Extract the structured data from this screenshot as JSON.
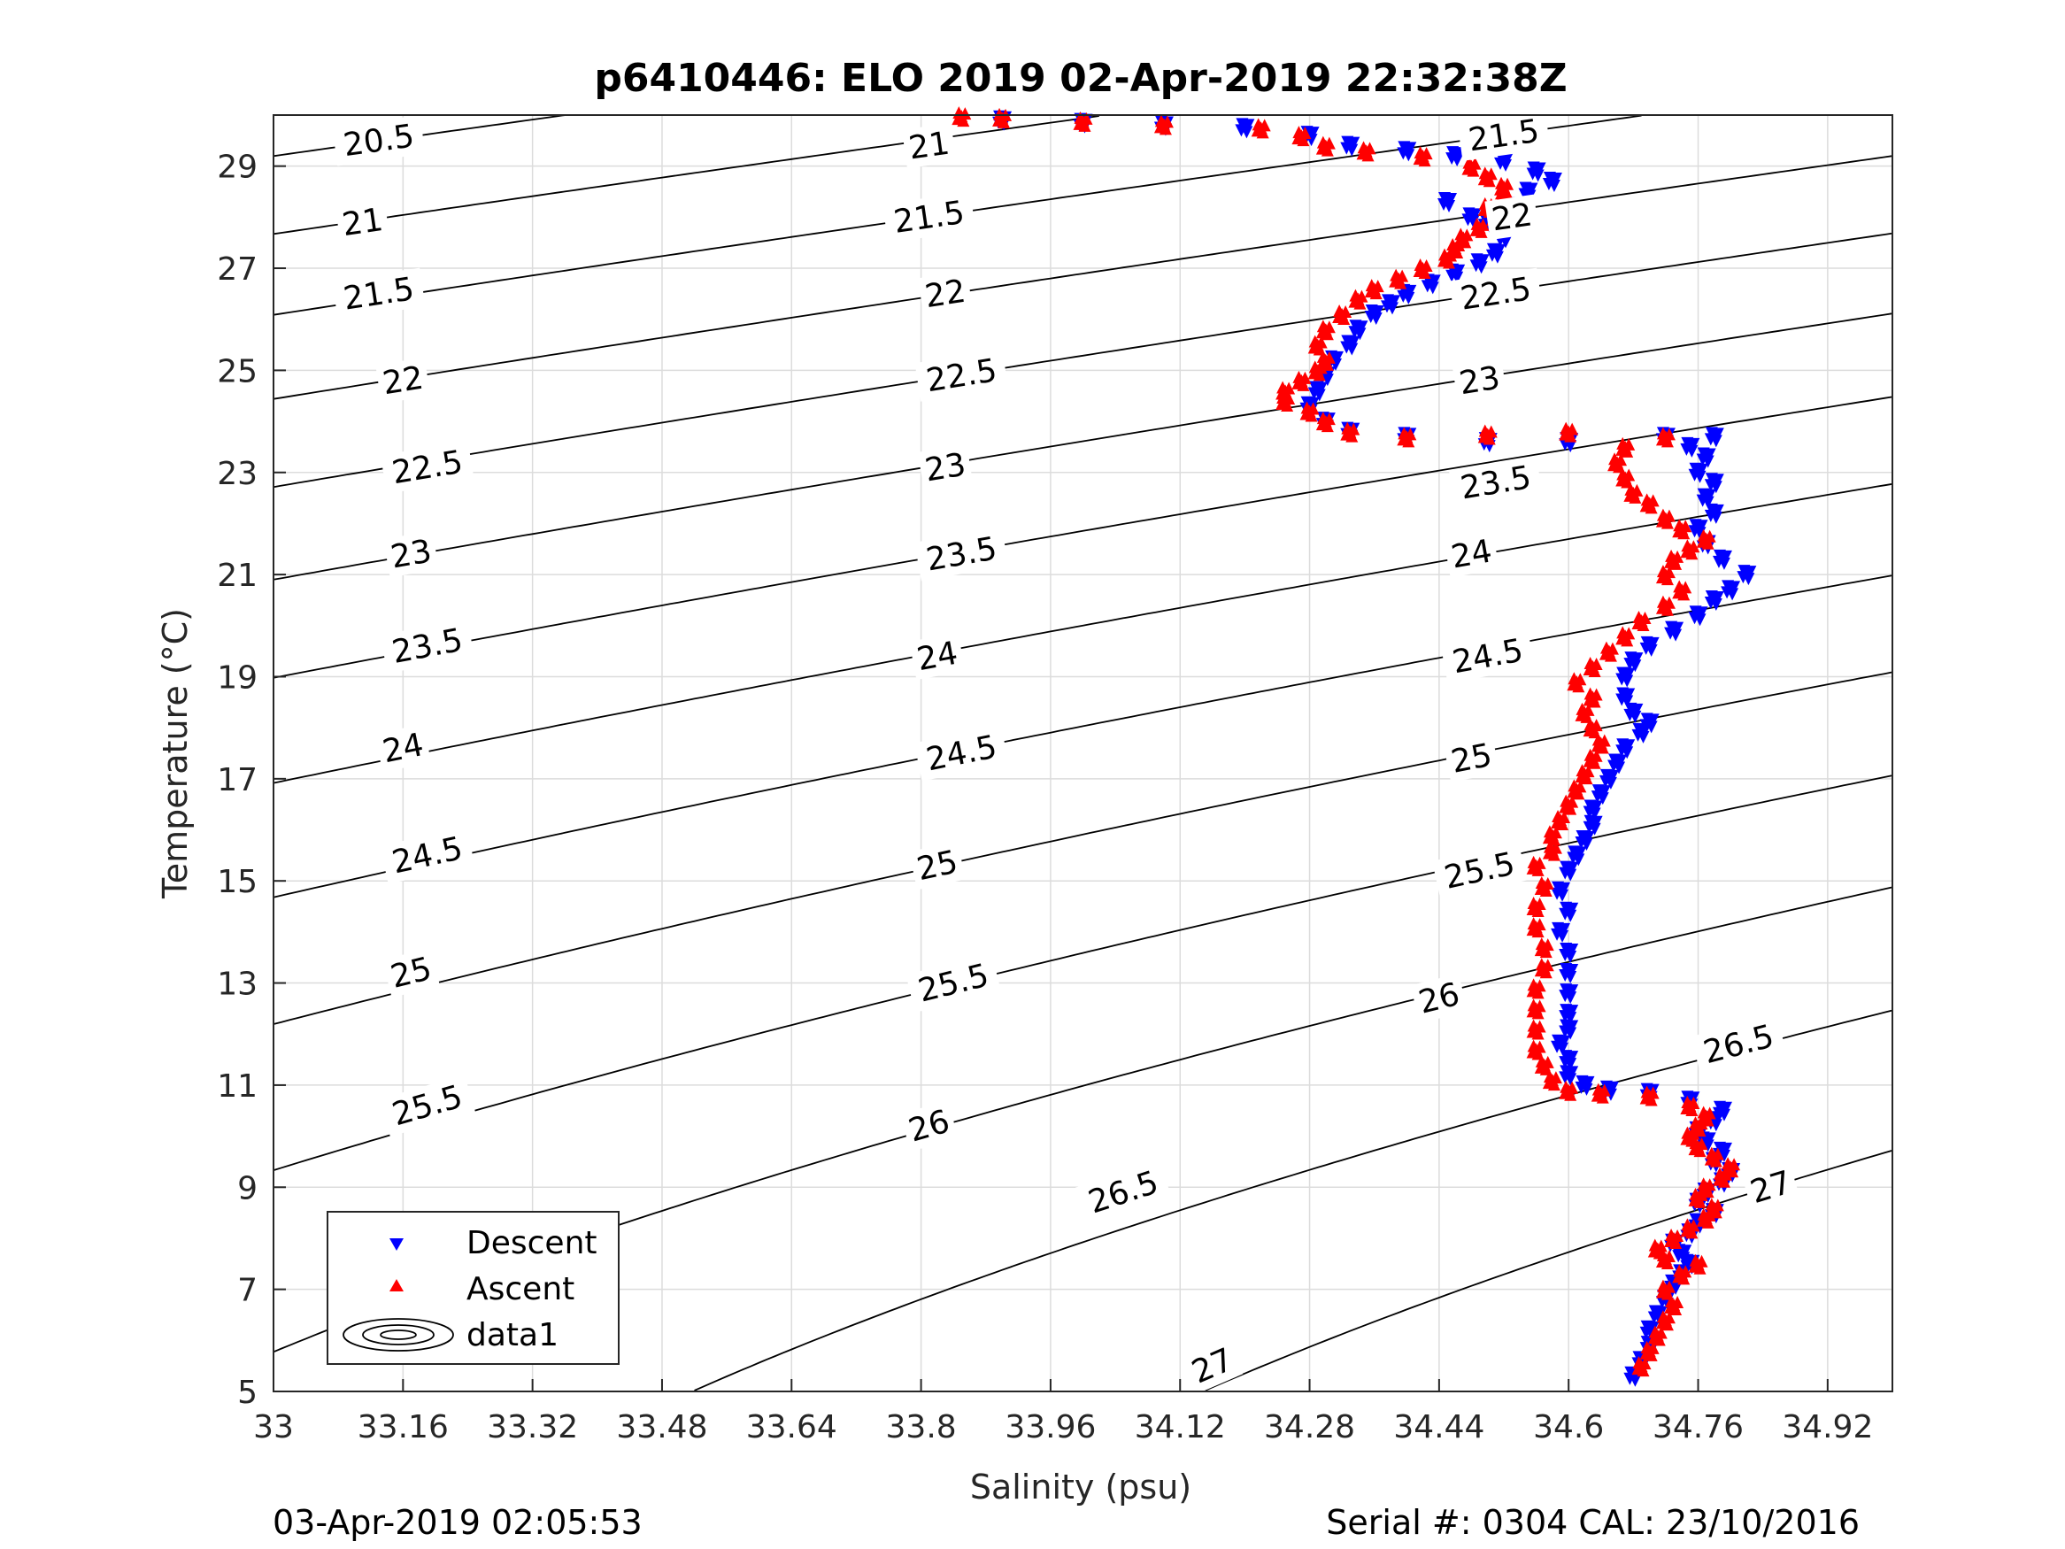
{
  "chart_data": {
    "type": "scatter",
    "title": "p6410446: ELO 2019 02-Apr-2019 22:32:38Z",
    "xlabel": "Salinity (psu)",
    "ylabel": "Temperature (°C)",
    "xlim": [
      33.0,
      35.0
    ],
    "ylim": [
      5,
      30
    ],
    "grid": true,
    "xticks": [
      "33",
      "33.16",
      "33.32",
      "33.48",
      "33.64",
      "33.8",
      "33.96",
      "34.12",
      "34.28",
      "34.44",
      "34.6",
      "34.76",
      "34.92"
    ],
    "yticks": [
      "5",
      "7",
      "9",
      "11",
      "13",
      "15",
      "17",
      "19",
      "21",
      "23",
      "25",
      "27",
      "29"
    ],
    "legend": {
      "placement": "bottom-left",
      "entries": [
        "Descent",
        "Ascent",
        "data1"
      ]
    },
    "contours": {
      "levels": [
        20.5,
        21,
        21.5,
        22,
        22.5,
        23,
        23.5,
        24,
        24.5,
        25,
        25.5,
        26,
        26.5,
        27
      ],
      "color": "#000000"
    },
    "contour_labels": [
      {
        "text": "20.5",
        "s": 33.13,
        "t": 29.5
      },
      {
        "text": "21",
        "s": 33.11,
        "t": 27.9
      },
      {
        "text": "21.5",
        "s": 33.13,
        "t": 26.5
      },
      {
        "text": "22",
        "s": 33.16,
        "t": 24.8
      },
      {
        "text": "22.5",
        "s": 33.19,
        "t": 23.1
      },
      {
        "text": "23",
        "s": 33.17,
        "t": 21.4
      },
      {
        "text": "23.5",
        "s": 33.19,
        "t": 19.6
      },
      {
        "text": "24",
        "s": 33.16,
        "t": 17.6
      },
      {
        "text": "24.5",
        "s": 33.19,
        "t": 15.5
      },
      {
        "text": "25",
        "s": 33.17,
        "t": 13.2
      },
      {
        "text": "25.5",
        "s": 33.19,
        "t": 10.6
      },
      {
        "text": "26",
        "s": 33.16,
        "t": 7.0
      },
      {
        "text": "21",
        "s": 33.81,
        "t": 29.4
      },
      {
        "text": "21.5",
        "s": 33.81,
        "t": 28.0
      },
      {
        "text": "22",
        "s": 33.83,
        "t": 26.5
      },
      {
        "text": "22.5",
        "s": 33.85,
        "t": 24.9
      },
      {
        "text": "23",
        "s": 33.83,
        "t": 23.1
      },
      {
        "text": "23.5",
        "s": 33.85,
        "t": 21.4
      },
      {
        "text": "24",
        "s": 33.82,
        "t": 19.4
      },
      {
        "text": "24.5",
        "s": 33.85,
        "t": 17.5
      },
      {
        "text": "25",
        "s": 33.82,
        "t": 15.3
      },
      {
        "text": "25.5",
        "s": 33.84,
        "t": 13.0
      },
      {
        "text": "26",
        "s": 33.81,
        "t": 10.2
      },
      {
        "text": "26.5",
        "s": 34.05,
        "t": 8.9
      },
      {
        "text": "27",
        "s": 34.16,
        "t": 5.5
      },
      {
        "text": "21.5",
        "s": 34.52,
        "t": 29.6
      },
      {
        "text": "22",
        "s": 34.53,
        "t": 28.0
      },
      {
        "text": "22.5",
        "s": 34.51,
        "t": 26.5
      },
      {
        "text": "23",
        "s": 34.49,
        "t": 24.8
      },
      {
        "text": "23.5",
        "s": 34.51,
        "t": 22.8
      },
      {
        "text": "24",
        "s": 34.48,
        "t": 21.4
      },
      {
        "text": "24.5",
        "s": 34.5,
        "t": 19.4
      },
      {
        "text": "25",
        "s": 34.48,
        "t": 17.4
      },
      {
        "text": "25.5",
        "s": 34.49,
        "t": 15.2
      },
      {
        "text": "26",
        "s": 34.44,
        "t": 12.7
      },
      {
        "text": "26.5",
        "s": 34.81,
        "t": 11.8
      },
      {
        "text": "27",
        "s": 34.85,
        "t": 9.0
      }
    ],
    "series": [
      {
        "name": "Descent",
        "marker": "triangle-down",
        "color": "#0000ff",
        "points": [
          [
            34.68,
            5.3
          ],
          [
            34.69,
            5.6
          ],
          [
            34.7,
            5.9
          ],
          [
            34.7,
            6.2
          ],
          [
            34.71,
            6.5
          ],
          [
            34.72,
            6.8
          ],
          [
            34.73,
            7.1
          ],
          [
            34.74,
            7.3
          ],
          [
            34.75,
            7.5
          ],
          [
            34.74,
            7.7
          ],
          [
            34.73,
            7.9
          ],
          [
            34.75,
            8.1
          ],
          [
            34.76,
            8.3
          ],
          [
            34.78,
            8.5
          ],
          [
            34.76,
            8.7
          ],
          [
            34.77,
            8.9
          ],
          [
            34.79,
            9.1
          ],
          [
            34.8,
            9.3
          ],
          [
            34.78,
            9.5
          ],
          [
            34.79,
            9.7
          ],
          [
            34.77,
            9.9
          ],
          [
            34.76,
            10.1
          ],
          [
            34.78,
            10.3
          ],
          [
            34.79,
            10.5
          ],
          [
            34.75,
            10.7
          ],
          [
            34.7,
            10.85
          ],
          [
            34.65,
            10.9
          ],
          [
            34.62,
            11.0
          ],
          [
            34.6,
            11.2
          ],
          [
            34.6,
            11.5
          ],
          [
            34.59,
            11.8
          ],
          [
            34.6,
            12.1
          ],
          [
            34.6,
            12.4
          ],
          [
            34.6,
            12.8
          ],
          [
            34.6,
            13.2
          ],
          [
            34.6,
            13.6
          ],
          [
            34.59,
            14.0
          ],
          [
            34.6,
            14.4
          ],
          [
            34.59,
            14.8
          ],
          [
            34.6,
            15.2
          ],
          [
            34.61,
            15.5
          ],
          [
            34.62,
            15.8
          ],
          [
            34.63,
            16.1
          ],
          [
            34.63,
            16.4
          ],
          [
            34.64,
            16.7
          ],
          [
            34.65,
            17.0
          ],
          [
            34.66,
            17.3
          ],
          [
            34.67,
            17.6
          ],
          [
            34.69,
            17.9
          ],
          [
            34.7,
            18.1
          ],
          [
            34.68,
            18.3
          ],
          [
            34.67,
            18.6
          ],
          [
            34.67,
            19.0
          ],
          [
            34.68,
            19.3
          ],
          [
            34.7,
            19.6
          ],
          [
            34.73,
            19.9
          ],
          [
            34.76,
            20.2
          ],
          [
            34.78,
            20.5
          ],
          [
            34.8,
            20.7
          ],
          [
            34.82,
            21.0
          ],
          [
            34.79,
            21.3
          ],
          [
            34.77,
            21.6
          ],
          [
            34.76,
            21.9
          ],
          [
            34.78,
            22.2
          ],
          [
            34.77,
            22.5
          ],
          [
            34.78,
            22.8
          ],
          [
            34.76,
            23.0
          ],
          [
            34.77,
            23.3
          ],
          [
            34.75,
            23.5
          ],
          [
            34.72,
            23.7
          ],
          [
            34.78,
            23.7
          ],
          [
            34.6,
            23.6
          ],
          [
            34.5,
            23.6
          ],
          [
            34.4,
            23.7
          ],
          [
            34.33,
            23.8
          ],
          [
            34.3,
            24.0
          ],
          [
            34.28,
            24.3
          ],
          [
            34.29,
            24.6
          ],
          [
            34.3,
            24.9
          ],
          [
            34.31,
            25.2
          ],
          [
            34.33,
            25.5
          ],
          [
            34.34,
            25.8
          ],
          [
            34.36,
            26.1
          ],
          [
            34.38,
            26.3
          ],
          [
            34.4,
            26.5
          ],
          [
            34.43,
            26.7
          ],
          [
            34.46,
            26.9
          ],
          [
            34.49,
            27.1
          ],
          [
            34.51,
            27.3
          ],
          [
            34.52,
            27.6
          ],
          [
            34.5,
            27.9
          ],
          [
            34.53,
            28.2
          ],
          [
            34.55,
            28.5
          ],
          [
            34.58,
            28.7
          ],
          [
            34.56,
            28.9
          ],
          [
            34.52,
            29.1
          ],
          [
            34.46,
            29.2
          ],
          [
            34.4,
            29.3
          ],
          [
            34.33,
            29.4
          ],
          [
            34.28,
            29.6
          ],
          [
            34.2,
            29.75
          ],
          [
            34.1,
            29.8
          ],
          [
            34.0,
            29.85
          ],
          [
            33.9,
            29.9
          ],
          [
            34.45,
            28.3
          ],
          [
            34.48,
            28.0
          ]
        ]
      },
      {
        "name": "Ascent",
        "marker": "triangle-up",
        "color": "#ff0000",
        "points": [
          [
            34.69,
            5.5
          ],
          [
            34.7,
            5.8
          ],
          [
            34.71,
            6.1
          ],
          [
            34.72,
            6.4
          ],
          [
            34.73,
            6.7
          ],
          [
            34.72,
            7.0
          ],
          [
            34.74,
            7.3
          ],
          [
            34.76,
            7.5
          ],
          [
            34.72,
            7.6
          ],
          [
            34.71,
            7.8
          ],
          [
            34.73,
            8.0
          ],
          [
            34.75,
            8.2
          ],
          [
            34.77,
            8.4
          ],
          [
            34.78,
            8.6
          ],
          [
            34.76,
            8.8
          ],
          [
            34.77,
            9.0
          ],
          [
            34.79,
            9.2
          ],
          [
            34.8,
            9.4
          ],
          [
            34.78,
            9.6
          ],
          [
            34.76,
            9.8
          ],
          [
            34.75,
            10.0
          ],
          [
            34.76,
            10.2
          ],
          [
            34.77,
            10.4
          ],
          [
            34.75,
            10.6
          ],
          [
            34.7,
            10.8
          ],
          [
            34.64,
            10.85
          ],
          [
            34.6,
            10.9
          ],
          [
            34.58,
            11.1
          ],
          [
            34.57,
            11.4
          ],
          [
            34.56,
            11.7
          ],
          [
            34.56,
            12.1
          ],
          [
            34.56,
            12.5
          ],
          [
            34.56,
            12.9
          ],
          [
            34.57,
            13.3
          ],
          [
            34.57,
            13.7
          ],
          [
            34.56,
            14.1
          ],
          [
            34.56,
            14.5
          ],
          [
            34.57,
            14.9
          ],
          [
            34.56,
            15.3
          ],
          [
            34.58,
            15.6
          ],
          [
            34.58,
            15.9
          ],
          [
            34.59,
            16.2
          ],
          [
            34.6,
            16.5
          ],
          [
            34.61,
            16.8
          ],
          [
            34.62,
            17.1
          ],
          [
            34.63,
            17.4
          ],
          [
            34.64,
            17.7
          ],
          [
            34.63,
            18.0
          ],
          [
            34.62,
            18.3
          ],
          [
            34.63,
            18.6
          ],
          [
            34.61,
            18.9
          ],
          [
            34.63,
            19.2
          ],
          [
            34.65,
            19.5
          ],
          [
            34.67,
            19.8
          ],
          [
            34.69,
            20.1
          ],
          [
            34.72,
            20.4
          ],
          [
            34.74,
            20.7
          ],
          [
            34.72,
            21.0
          ],
          [
            34.73,
            21.3
          ],
          [
            34.75,
            21.5
          ],
          [
            34.77,
            21.7
          ],
          [
            34.74,
            21.9
          ],
          [
            34.72,
            22.1
          ],
          [
            34.7,
            22.4
          ],
          [
            34.68,
            22.6
          ],
          [
            34.67,
            22.9
          ],
          [
            34.66,
            23.2
          ],
          [
            34.67,
            23.5
          ],
          [
            34.72,
            23.7
          ],
          [
            34.6,
            23.8
          ],
          [
            34.5,
            23.75
          ],
          [
            34.4,
            23.7
          ],
          [
            34.33,
            23.8
          ],
          [
            34.3,
            24.0
          ],
          [
            34.28,
            24.2
          ],
          [
            34.25,
            24.4
          ],
          [
            34.25,
            24.6
          ],
          [
            34.27,
            24.8
          ],
          [
            34.29,
            25.0
          ],
          [
            34.3,
            25.2
          ],
          [
            34.29,
            25.5
          ],
          [
            34.3,
            25.8
          ],
          [
            34.32,
            26.1
          ],
          [
            34.34,
            26.4
          ],
          [
            34.36,
            26.6
          ],
          [
            34.39,
            26.8
          ],
          [
            34.42,
            27.0
          ],
          [
            34.45,
            27.2
          ],
          [
            34.46,
            27.4
          ],
          [
            34.47,
            27.6
          ],
          [
            34.49,
            27.8
          ],
          [
            34.51,
            28.0
          ],
          [
            34.5,
            28.2
          ],
          [
            34.52,
            28.4
          ],
          [
            34.52,
            28.6
          ],
          [
            34.5,
            28.8
          ],
          [
            34.48,
            29.0
          ],
          [
            34.42,
            29.2
          ],
          [
            34.35,
            29.3
          ],
          [
            34.3,
            29.4
          ],
          [
            34.27,
            29.6
          ],
          [
            34.22,
            29.75
          ],
          [
            34.1,
            29.82
          ],
          [
            34.0,
            29.88
          ],
          [
            33.9,
            29.95
          ],
          [
            33.85,
            29.98
          ]
        ]
      }
    ]
  },
  "footer": {
    "left": "03-Apr-2019 02:05:53",
    "right": "Serial #: 0304  CAL: 23/10/2016"
  }
}
